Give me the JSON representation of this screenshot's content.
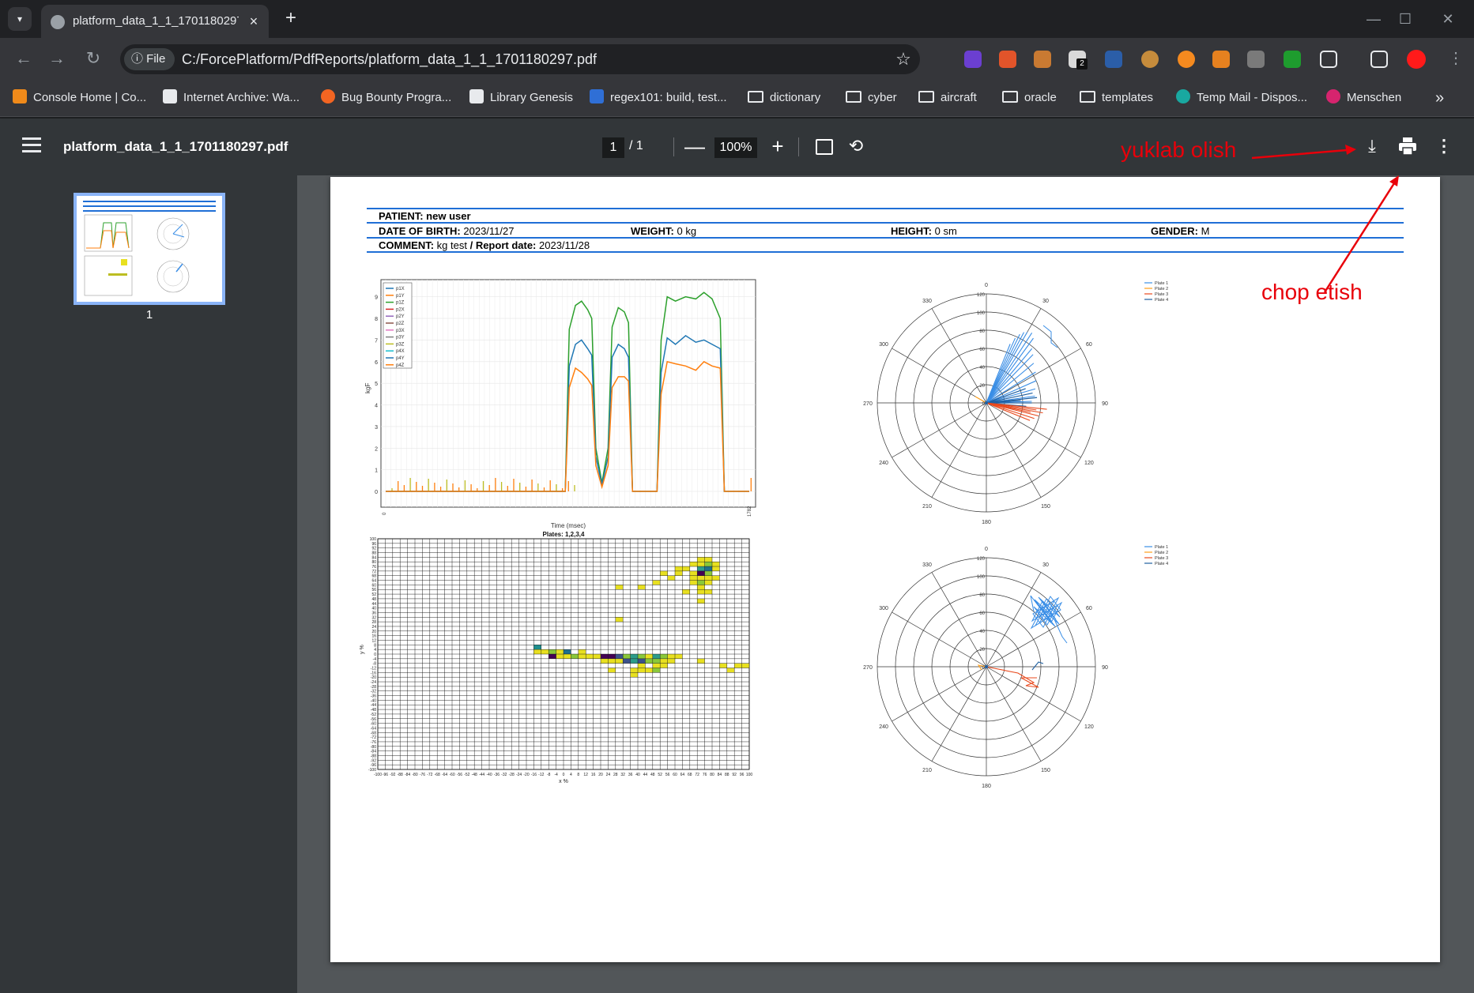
{
  "browser": {
    "tab_title": "platform_data_1_1_1701180297.pdf",
    "tab_close": "×",
    "new_tab": "+",
    "window_min": "—",
    "window_max": "☐",
    "window_close": "✕",
    "site_chip": "File",
    "url": "C:/ForcePlatform/PdfReports/platform_data_1_1_1701180297.pdf",
    "extension_badge": "2",
    "bookmarks": [
      {
        "label": "Console Home | Co...",
        "icon": "aws-icon"
      },
      {
        "label": "Internet Archive: Wa...",
        "icon": "archive-icon"
      },
      {
        "label": "Bug Bounty Progra...",
        "icon": "bugcrowd-icon"
      },
      {
        "label": "Library Genesis",
        "icon": "libgen-icon"
      },
      {
        "label": "regex101: build, test...",
        "icon": "regex-icon"
      },
      {
        "label": "dictionary",
        "icon": "folder-icon"
      },
      {
        "label": "cyber",
        "icon": "folder-icon"
      },
      {
        "label": "aircraft",
        "icon": "folder-icon"
      },
      {
        "label": "oracle",
        "icon": "folder-icon"
      },
      {
        "label": "templates",
        "icon": "folder-icon"
      },
      {
        "label": "Temp Mail - Dispos...",
        "icon": "tempmail-icon"
      },
      {
        "label": "Menschen",
        "icon": "menschen-icon"
      }
    ],
    "bookmarks_overflow": "»"
  },
  "pdf_toolbar": {
    "doc_name": "platform_data_1_1_1701180297.pdf",
    "page_current": "1",
    "page_total": "/ 1",
    "zoom": "100%",
    "zoom_out": "—",
    "zoom_in": "+"
  },
  "sidebar": {
    "thumb_label": "1"
  },
  "report": {
    "patient": "PATIENT: new user",
    "dob_label": "DATE OF BIRTH:",
    "dob": "2023/11/27",
    "weight_label": "WEIGHT:",
    "weight": "0 kg",
    "height_label": "HEIGHT:",
    "height": "0 sm",
    "gender_label": "GENDER:",
    "gender": "M",
    "comment_label": "COMMENT:",
    "comment": "kg test",
    "report_date_label": "/ Report date:",
    "report_date": "2023/11/28"
  },
  "annotations": {
    "download_note": "yuklab olish",
    "print_note": "chop etish",
    "arrow_color": "#e8000a"
  },
  "chart_data": [
    {
      "type": "line",
      "ylabel": "kgF",
      "xlabel": "Time (msec)",
      "ylim": [
        0,
        9.5
      ],
      "yticks": [
        0,
        1,
        2,
        3,
        4,
        5,
        6,
        7,
        8,
        9
      ],
      "legend": [
        "p1X",
        "p1Y",
        "p1Z",
        "p2X",
        "p2Y",
        "p2Z",
        "p3X",
        "p3Y",
        "p3Z",
        "p4X",
        "p4Y",
        "p4Z"
      ],
      "legend_colors": [
        "#1f77b4",
        "#ff7f0e",
        "#2ca02c",
        "#d62728",
        "#9467bd",
        "#8c564b",
        "#e377c2",
        "#7f7f7f",
        "#bcbd22",
        "#17becf",
        "#1f77b4",
        "#ff7f0e"
      ],
      "x_ticks_first": "0",
      "x_ticks_last": "1782",
      "series": [
        {
          "name": "p1Z",
          "color": "#2ca02c",
          "points": [
            [
              0,
              0
            ],
            [
              880,
              0
            ],
            [
              900,
              7.5
            ],
            [
              930,
              8.6
            ],
            [
              960,
              8.8
            ],
            [
              990,
              8.4
            ],
            [
              1010,
              8.0
            ],
            [
              1030,
              2
            ],
            [
              1060,
              0.4
            ],
            [
              1090,
              2
            ],
            [
              1110,
              7.6
            ],
            [
              1140,
              8.5
            ],
            [
              1170,
              8.3
            ],
            [
              1190,
              7.8
            ],
            [
              1210,
              0
            ],
            [
              1330,
              0
            ],
            [
              1350,
              7
            ],
            [
              1380,
              9.0
            ],
            [
              1420,
              8.8
            ],
            [
              1470,
              9.0
            ],
            [
              1520,
              8.9
            ],
            [
              1560,
              9.2
            ],
            [
              1600,
              8.9
            ],
            [
              1640,
              8.0
            ],
            [
              1660,
              0
            ],
            [
              1782,
              0
            ]
          ]
        },
        {
          "name": "p1Y",
          "color": "#1f77b4",
          "points": [
            [
              0,
              0
            ],
            [
              880,
              0
            ],
            [
              900,
              5.8
            ],
            [
              930,
              6.8
            ],
            [
              960,
              7.0
            ],
            [
              990,
              6.6
            ],
            [
              1010,
              6.3
            ],
            [
              1030,
              1.6
            ],
            [
              1060,
              0.3
            ],
            [
              1090,
              1.6
            ],
            [
              1110,
              6.2
            ],
            [
              1140,
              6.8
            ],
            [
              1170,
              6.6
            ],
            [
              1190,
              6.2
            ],
            [
              1210,
              0
            ],
            [
              1330,
              0
            ],
            [
              1350,
              5.5
            ],
            [
              1380,
              7.1
            ],
            [
              1420,
              6.8
            ],
            [
              1470,
              7.2
            ],
            [
              1520,
              6.9
            ],
            [
              1560,
              7.0
            ],
            [
              1600,
              6.8
            ],
            [
              1640,
              6.6
            ],
            [
              1660,
              0
            ],
            [
              1782,
              0
            ]
          ]
        },
        {
          "name": "p1X",
          "color": "#ff7f0e",
          "points": [
            [
              0,
              0
            ],
            [
              880,
              0
            ],
            [
              900,
              4.8
            ],
            [
              930,
              5.7
            ],
            [
              960,
              5.5
            ],
            [
              990,
              5.2
            ],
            [
              1010,
              4.9
            ],
            [
              1030,
              1.2
            ],
            [
              1060,
              0.2
            ],
            [
              1090,
              1.2
            ],
            [
              1110,
              4.8
            ],
            [
              1140,
              5.3
            ],
            [
              1170,
              5.3
            ],
            [
              1190,
              5.1
            ],
            [
              1210,
              0
            ],
            [
              1330,
              0
            ],
            [
              1350,
              4.5
            ],
            [
              1380,
              6.0
            ],
            [
              1420,
              5.9
            ],
            [
              1470,
              5.8
            ],
            [
              1520,
              5.6
            ],
            [
              1560,
              6.0
            ],
            [
              1600,
              5.8
            ],
            [
              1640,
              5.7
            ],
            [
              1660,
              0
            ],
            [
              1782,
              0
            ]
          ]
        }
      ]
    },
    {
      "type": "scatter",
      "title": "Plates: 1,2,3,4",
      "subtype": "radar-polar",
      "angle_labels": [
        "0",
        "30",
        "60",
        "90",
        "120",
        "150",
        "180",
        "210",
        "240",
        "270",
        "300",
        "330"
      ],
      "radial_ticks": [
        "0",
        "20",
        "40",
        "60",
        "80",
        "100",
        "120"
      ],
      "legend": [
        "Plate 1",
        "Plate 2",
        "Plate 3",
        "Plate 4"
      ],
      "legend_colors": [
        "#3a8ee6",
        "#ff9f1a",
        "#e8491d",
        "#1f5fa0"
      ]
    },
    {
      "type": "heatmap",
      "title": "Plates: 1,2,3,4",
      "xlabel": "x %",
      "ylabel": "y %",
      "xlim": [
        -100,
        100
      ],
      "ylim": [
        -100,
        100
      ],
      "x_tick_labels": [
        "-100",
        "-96",
        "-92",
        "-88",
        "-84",
        "-80",
        "-76",
        "-72",
        "-68",
        "-64",
        "-60",
        "-56",
        "-52",
        "-48",
        "-44",
        "-40",
        "-36",
        "-32",
        "-28",
        "-24",
        "-20",
        "-16",
        "-12",
        "-8",
        "-4",
        "0",
        "4",
        "8",
        "12",
        "16",
        "20",
        "24",
        "28",
        "32",
        "36",
        "40",
        "44",
        "48",
        "52",
        "56",
        "60",
        "64",
        "68",
        "72",
        "76",
        "80",
        "84",
        "88",
        "92",
        "96",
        "100"
      ],
      "y_tick_labels": [
        "100",
        "96",
        "92",
        "88",
        "84",
        "80",
        "76",
        "72",
        "68",
        "64",
        "60",
        "56",
        "52",
        "48",
        "44",
        "40",
        "36",
        "32",
        "28",
        "24",
        "20",
        "16",
        "12",
        "8",
        "4",
        "0",
        "-4",
        "-8",
        "-12",
        "-16",
        "-20",
        "-24",
        "-28",
        "-32",
        "-36",
        "-40",
        "-44",
        "-48",
        "-52",
        "-56",
        "-60",
        "-64",
        "-68",
        "-72",
        "-76",
        "-80",
        "-84",
        "-88",
        "-92",
        "-96",
        "-100"
      ],
      "cells": [
        [
          72,
          84,
          "#e8e020"
        ],
        [
          76,
          84,
          "#e8e020"
        ],
        [
          68,
          80,
          "#e8e020"
        ],
        [
          72,
          80,
          "#e8e020"
        ],
        [
          76,
          80,
          "#8ac83a"
        ],
        [
          80,
          80,
          "#e8e020"
        ],
        [
          60,
          76,
          "#e8e020"
        ],
        [
          64,
          76,
          "#e8e020"
        ],
        [
          72,
          76,
          "#2d9c8a"
        ],
        [
          76,
          76,
          "#1e6f8e"
        ],
        [
          80,
          76,
          "#e8e020"
        ],
        [
          52,
          72,
          "#e8e020"
        ],
        [
          60,
          72,
          "#e8e020"
        ],
        [
          68,
          72,
          "#e8e020"
        ],
        [
          72,
          72,
          "#440154"
        ],
        [
          76,
          72,
          "#8ac83a"
        ],
        [
          56,
          68,
          "#e8e020"
        ],
        [
          68,
          68,
          "#e8e020"
        ],
        [
          72,
          68,
          "#e8e020"
        ],
        [
          76,
          68,
          "#e8e020"
        ],
        [
          80,
          68,
          "#e8e020"
        ],
        [
          48,
          64,
          "#e8e020"
        ],
        [
          68,
          64,
          "#e8e020"
        ],
        [
          72,
          64,
          "#8ac83a"
        ],
        [
          76,
          64,
          "#e8e020"
        ],
        [
          28,
          60,
          "#e8e020"
        ],
        [
          40,
          60,
          "#e8e020"
        ],
        [
          72,
          60,
          "#e8e020"
        ],
        [
          64,
          56,
          "#e8e020"
        ],
        [
          72,
          56,
          "#e8e020"
        ],
        [
          76,
          56,
          "#e8e020"
        ],
        [
          72,
          48,
          "#e8e020"
        ],
        [
          28,
          32,
          "#e8e020"
        ],
        [
          -16,
          8,
          "#1e8f8e"
        ],
        [
          -16,
          4,
          "#e8e020"
        ],
        [
          -12,
          4,
          "#e8e020"
        ],
        [
          -8,
          4,
          "#8ac83a"
        ],
        [
          -4,
          4,
          "#e8e020"
        ],
        [
          0,
          4,
          "#1e6f8e"
        ],
        [
          8,
          4,
          "#e8e020"
        ],
        [
          -4,
          0,
          "#e8e020"
        ],
        [
          -8,
          0,
          "#440154"
        ],
        [
          0,
          0,
          "#e8e020"
        ],
        [
          4,
          0,
          "#8ac83a"
        ],
        [
          8,
          0,
          "#e8e020"
        ],
        [
          12,
          0,
          "#e8e020"
        ],
        [
          16,
          0,
          "#e8e020"
        ],
        [
          20,
          0,
          "#440154"
        ],
        [
          24,
          0,
          "#440154"
        ],
        [
          28,
          0,
          "#3b528b"
        ],
        [
          32,
          0,
          "#8ac83a"
        ],
        [
          36,
          0,
          "#2d9c8a"
        ],
        [
          40,
          0,
          "#8ac83a"
        ],
        [
          44,
          0,
          "#e8e020"
        ],
        [
          48,
          0,
          "#2d9c8a"
        ],
        [
          52,
          0,
          "#8ac83a"
        ],
        [
          56,
          0,
          "#e8e020"
        ],
        [
          60,
          0,
          "#e8e020"
        ],
        [
          20,
          -4,
          "#e8e020"
        ],
        [
          24,
          -4,
          "#e8e020"
        ],
        [
          28,
          -4,
          "#e8e020"
        ],
        [
          32,
          -4,
          "#3b528b"
        ],
        [
          36,
          -4,
          "#2d9c8a"
        ],
        [
          40,
          -4,
          "#3b528b"
        ],
        [
          44,
          -4,
          "#8ac83a"
        ],
        [
          48,
          -4,
          "#8ac83a"
        ],
        [
          52,
          -4,
          "#e8e020"
        ],
        [
          56,
          -4,
          "#e8e020"
        ],
        [
          72,
          -4,
          "#e8e020"
        ],
        [
          84,
          -8,
          "#e8e020"
        ],
        [
          92,
          -8,
          "#e8e020"
        ],
        [
          96,
          -8,
          "#e8e020"
        ],
        [
          88,
          -12,
          "#e8e020"
        ],
        [
          52,
          -8,
          "#e8e020"
        ],
        [
          40,
          -8,
          "#e8e020"
        ],
        [
          48,
          -8,
          "#e8e020"
        ],
        [
          24,
          -12,
          "#e8e020"
        ],
        [
          36,
          -12,
          "#e8e020"
        ],
        [
          40,
          -12,
          "#e8e020"
        ],
        [
          44,
          -12,
          "#e8e020"
        ],
        [
          48,
          -12,
          "#8ac83a"
        ],
        [
          36,
          -16,
          "#e8e020"
        ]
      ]
    },
    {
      "type": "scatter",
      "subtype": "radar-polar",
      "angle_labels": [
        "0",
        "30",
        "60",
        "90",
        "120",
        "150",
        "180",
        "210",
        "240",
        "270",
        "300",
        "330"
      ],
      "radial_ticks": [
        "0",
        "20",
        "40",
        "60",
        "80",
        "100",
        "120"
      ],
      "legend": [
        "Plate 1",
        "Plate 2",
        "Plate 3",
        "Plate 4"
      ],
      "legend_colors": [
        "#3a8ee6",
        "#ff9f1a",
        "#e8491d",
        "#1f5fa0"
      ]
    }
  ]
}
